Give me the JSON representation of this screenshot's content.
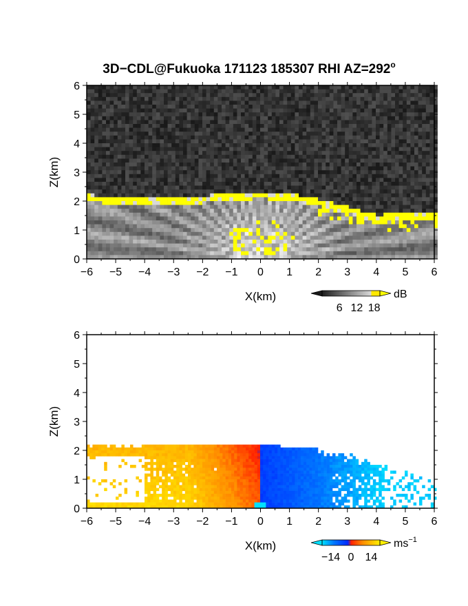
{
  "title": "3D−CDL@Fukuoka 171123 185307 RHI AZ=292",
  "title_superscript": "o",
  "chart_data": [
    {
      "type": "heatmap",
      "panel": "top",
      "quantity": "backscatter",
      "xlabel": "X(km)",
      "ylabel": "Z(km)",
      "xlim": [
        -6,
        6
      ],
      "ylim": [
        0,
        6
      ],
      "x_ticks": [
        "−6",
        "−5",
        "−4",
        "−3",
        "−2",
        "−1",
        "0",
        "1",
        "2",
        "3",
        "4",
        "5",
        "6"
      ],
      "y_ticks": [
        "0",
        "1",
        "2",
        "3",
        "4",
        "5",
        "6"
      ],
      "colormap": "grayscale to yellow",
      "colorbar": {
        "unit": "dB",
        "ticks": [
          "6",
          "12",
          "18"
        ],
        "tick_values": [
          6,
          12,
          18
        ],
        "range": [
          0,
          20
        ]
      },
      "boundary_layer_top_km": [
        {
          "x": -6,
          "z": 2.1
        },
        {
          "x": -5,
          "z": 2.0
        },
        {
          "x": -4,
          "z": 1.95
        },
        {
          "x": -3,
          "z": 2.0
        },
        {
          "x": -2,
          "z": 2.05
        },
        {
          "x": -1,
          "z": 2.15
        },
        {
          "x": 0,
          "z": 2.2
        },
        {
          "x": 1,
          "z": 2.15
        },
        {
          "x": 2,
          "z": 1.95
        },
        {
          "x": 3,
          "z": 1.7
        },
        {
          "x": 4,
          "z": 1.4
        },
        {
          "x": 5,
          "z": 1.45
        },
        {
          "x": 6,
          "z": 1.5
        }
      ],
      "colors": {
        "background": "#2b2b2b",
        "aerosol_layer": "#b4b4b4",
        "strong_return": "#ffff00"
      }
    },
    {
      "type": "heatmap",
      "panel": "bottom",
      "quantity": "radial velocity",
      "xlabel": "X(km)",
      "ylabel": "Z(km)",
      "xlim": [
        -6,
        6
      ],
      "ylim": [
        0,
        6
      ],
      "x_ticks": [
        "−6",
        "−5",
        "−4",
        "−3",
        "−2",
        "−1",
        "0",
        "1",
        "2",
        "3",
        "4",
        "5",
        "6"
      ],
      "y_ticks": [
        "0",
        "1",
        "2",
        "3",
        "4",
        "5",
        "6"
      ],
      "colormap": "cyan-blue-red-yellow",
      "colorbar": {
        "unit": "ms",
        "unit_superscript": "−1",
        "ticks": [
          "−14",
          "0",
          "14"
        ],
        "tick_values": [
          -14,
          0,
          14
        ],
        "range": [
          -20,
          20
        ]
      },
      "velocity_sign": {
        "x_lt_0": "positive (toward yellow)",
        "x_gt_0": "negative (toward blue)"
      },
      "colors": {
        "cyan": "#00e0ff",
        "blue": "#0030ff",
        "red": "#ff1e00",
        "orange": "#ff9600",
        "yellow": "#ffff00"
      }
    }
  ]
}
